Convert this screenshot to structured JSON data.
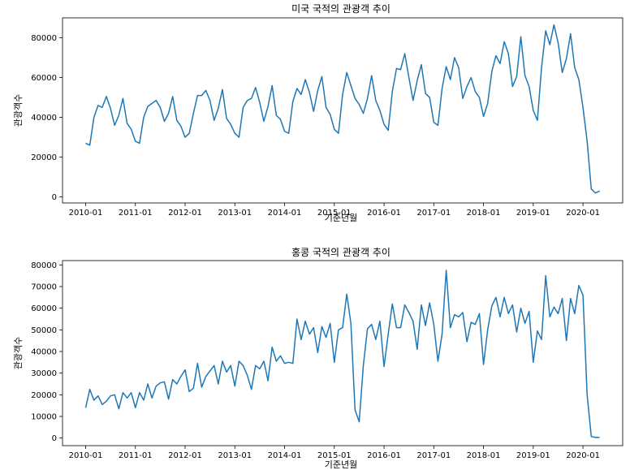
{
  "chart_data": [
    {
      "type": "line",
      "title": "미국 국적의 관광객 추이",
      "xlabel": "기준년월",
      "ylabel": "관광객수",
      "grid": false,
      "color": "#1f77b4",
      "x_start": "2010-01",
      "x_ticks": [
        "2010-01",
        "2011-01",
        "2012-01",
        "2013-01",
        "2014-01",
        "2015-01",
        "2016-01",
        "2017-01",
        "2018-01",
        "2019-01",
        "2020-01"
      ],
      "y_ticks": [
        0,
        20000,
        40000,
        60000,
        80000
      ],
      "ylim": [
        -3000,
        90000
      ],
      "values": [
        27000,
        26000,
        40000,
        46000,
        45000,
        50500,
        44500,
        36000,
        41000,
        49500,
        37000,
        34000,
        28000,
        27000,
        40000,
        45500,
        47000,
        48500,
        45000,
        38000,
        42000,
        50500,
        38500,
        35500,
        30000,
        32000,
        42000,
        51000,
        51000,
        53500,
        48500,
        38500,
        44500,
        54000,
        39500,
        36500,
        32000,
        30000,
        45000,
        48500,
        49500,
        55000,
        47500,
        38000,
        45500,
        56000,
        41000,
        39000,
        33000,
        32000,
        48000,
        54500,
        51500,
        59000,
        52500,
        43000,
        53500,
        60500,
        45000,
        41500,
        34000,
        32000,
        51500,
        62500,
        56000,
        49500,
        46500,
        42000,
        49500,
        61000,
        48500,
        43500,
        36500,
        33500,
        53000,
        64500,
        64000,
        72000,
        60000,
        48500,
        58500,
        66500,
        52000,
        50000,
        37500,
        36000,
        54500,
        65500,
        59000,
        70000,
        65000,
        49500,
        55500,
        60000,
        53000,
        50000,
        40500,
        47000,
        63000,
        71000,
        67000,
        78000,
        72000,
        55500,
        60500,
        80500,
        61000,
        55500,
        43500,
        38500,
        65000,
        83500,
        76500,
        86500,
        77500,
        62500,
        69500,
        82000,
        65000,
        59000,
        45000,
        28000,
        4000,
        2000,
        3000
      ]
    },
    {
      "type": "line",
      "title": "홍콩 국적의 관광객 추이",
      "xlabel": "기준년월",
      "ylabel": "관광객수",
      "grid": false,
      "color": "#1f77b4",
      "x_start": "2010-01",
      "x_ticks": [
        "2010-01",
        "2011-01",
        "2012-01",
        "2013-01",
        "2014-01",
        "2015-01",
        "2016-01",
        "2017-01",
        "2018-01",
        "2019-01",
        "2020-01"
      ],
      "y_ticks": [
        0,
        10000,
        20000,
        30000,
        40000,
        50000,
        60000,
        70000,
        80000
      ],
      "ylim": [
        -3500,
        82000
      ],
      "values": [
        14000,
        22500,
        17500,
        19500,
        15500,
        17000,
        19500,
        20000,
        13500,
        21000,
        18500,
        21000,
        14000,
        21000,
        17500,
        25000,
        18500,
        24000,
        25500,
        26000,
        18000,
        27000,
        25000,
        28500,
        31500,
        21500,
        23000,
        34500,
        23500,
        28500,
        31000,
        33500,
        25000,
        35500,
        30500,
        33500,
        24000,
        35500,
        33500,
        29000,
        22500,
        33500,
        32000,
        35500,
        26500,
        42000,
        35500,
        38000,
        34500,
        35000,
        34500,
        55000,
        45500,
        54000,
        48000,
        51000,
        39500,
        51500,
        46500,
        53000,
        35000,
        50000,
        51000,
        66500,
        53000,
        13000,
        7500,
        33500,
        50500,
        52500,
        45500,
        54000,
        33000,
        48000,
        62000,
        51000,
        51000,
        61500,
        58000,
        54000,
        41000,
        61500,
        52000,
        62500,
        52500,
        35500,
        48000,
        77500,
        51000,
        57000,
        56000,
        58000,
        44500,
        53500,
        52500,
        57500,
        34000,
        50000,
        61000,
        65000,
        56000,
        65000,
        57500,
        61500,
        49000,
        60000,
        53000,
        58500,
        35000,
        49500,
        45500,
        75000,
        56000,
        60500,
        57500,
        64500,
        45000,
        64500,
        57500,
        70500,
        66000,
        20000,
        700,
        300,
        300
      ]
    }
  ]
}
